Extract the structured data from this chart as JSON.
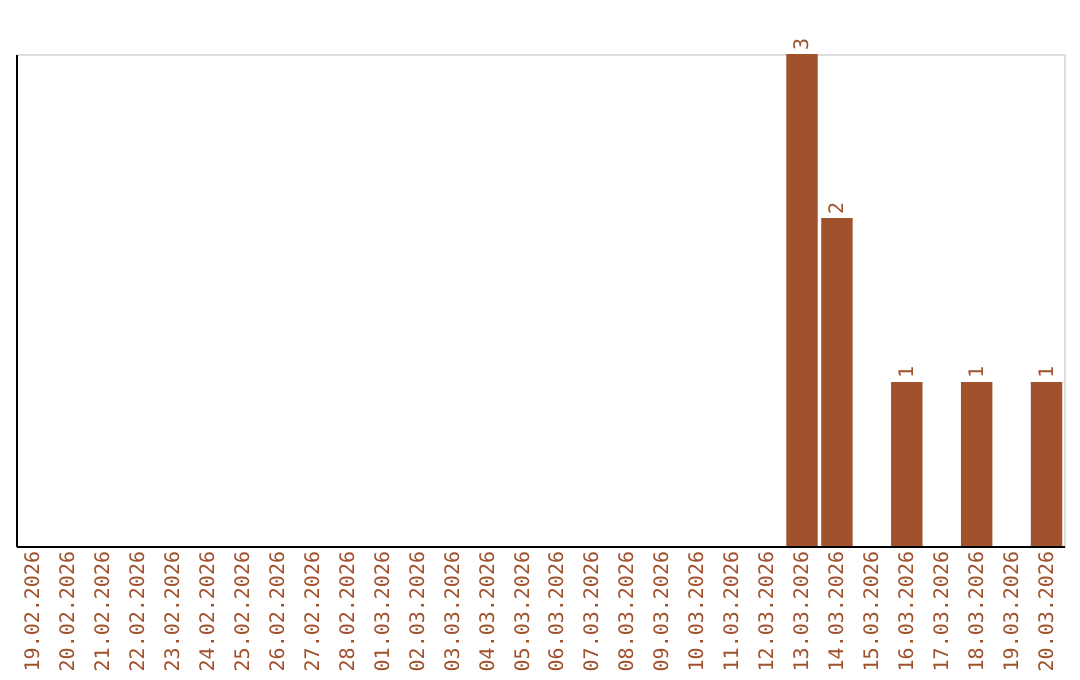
{
  "chart_data": {
    "type": "bar",
    "categories": [
      "19.02.2026",
      "20.02.2026",
      "21.02.2026",
      "22.02.2026",
      "23.02.2026",
      "24.02.2026",
      "25.02.2026",
      "26.02.2026",
      "27.02.2026",
      "28.02.2026",
      "01.03.2026",
      "02.03.2026",
      "03.03.2026",
      "04.03.2026",
      "05.03.2026",
      "06.03.2026",
      "07.03.2026",
      "08.03.2026",
      "09.03.2026",
      "10.03.2026",
      "11.03.2026",
      "12.03.2026",
      "13.03.2026",
      "14.03.2026",
      "15.03.2026",
      "16.03.2026",
      "17.03.2026",
      "18.03.2026",
      "19.03.2026",
      "20.03.2026"
    ],
    "values": [
      null,
      null,
      null,
      null,
      null,
      null,
      null,
      null,
      null,
      null,
      null,
      null,
      null,
      null,
      null,
      null,
      null,
      null,
      null,
      null,
      null,
      null,
      3,
      2,
      null,
      1,
      null,
      1,
      null,
      1
    ],
    "data_labels": true,
    "color": "#a0522d",
    "ylim": [
      0,
      3
    ],
    "tick_labels": "x"
  }
}
